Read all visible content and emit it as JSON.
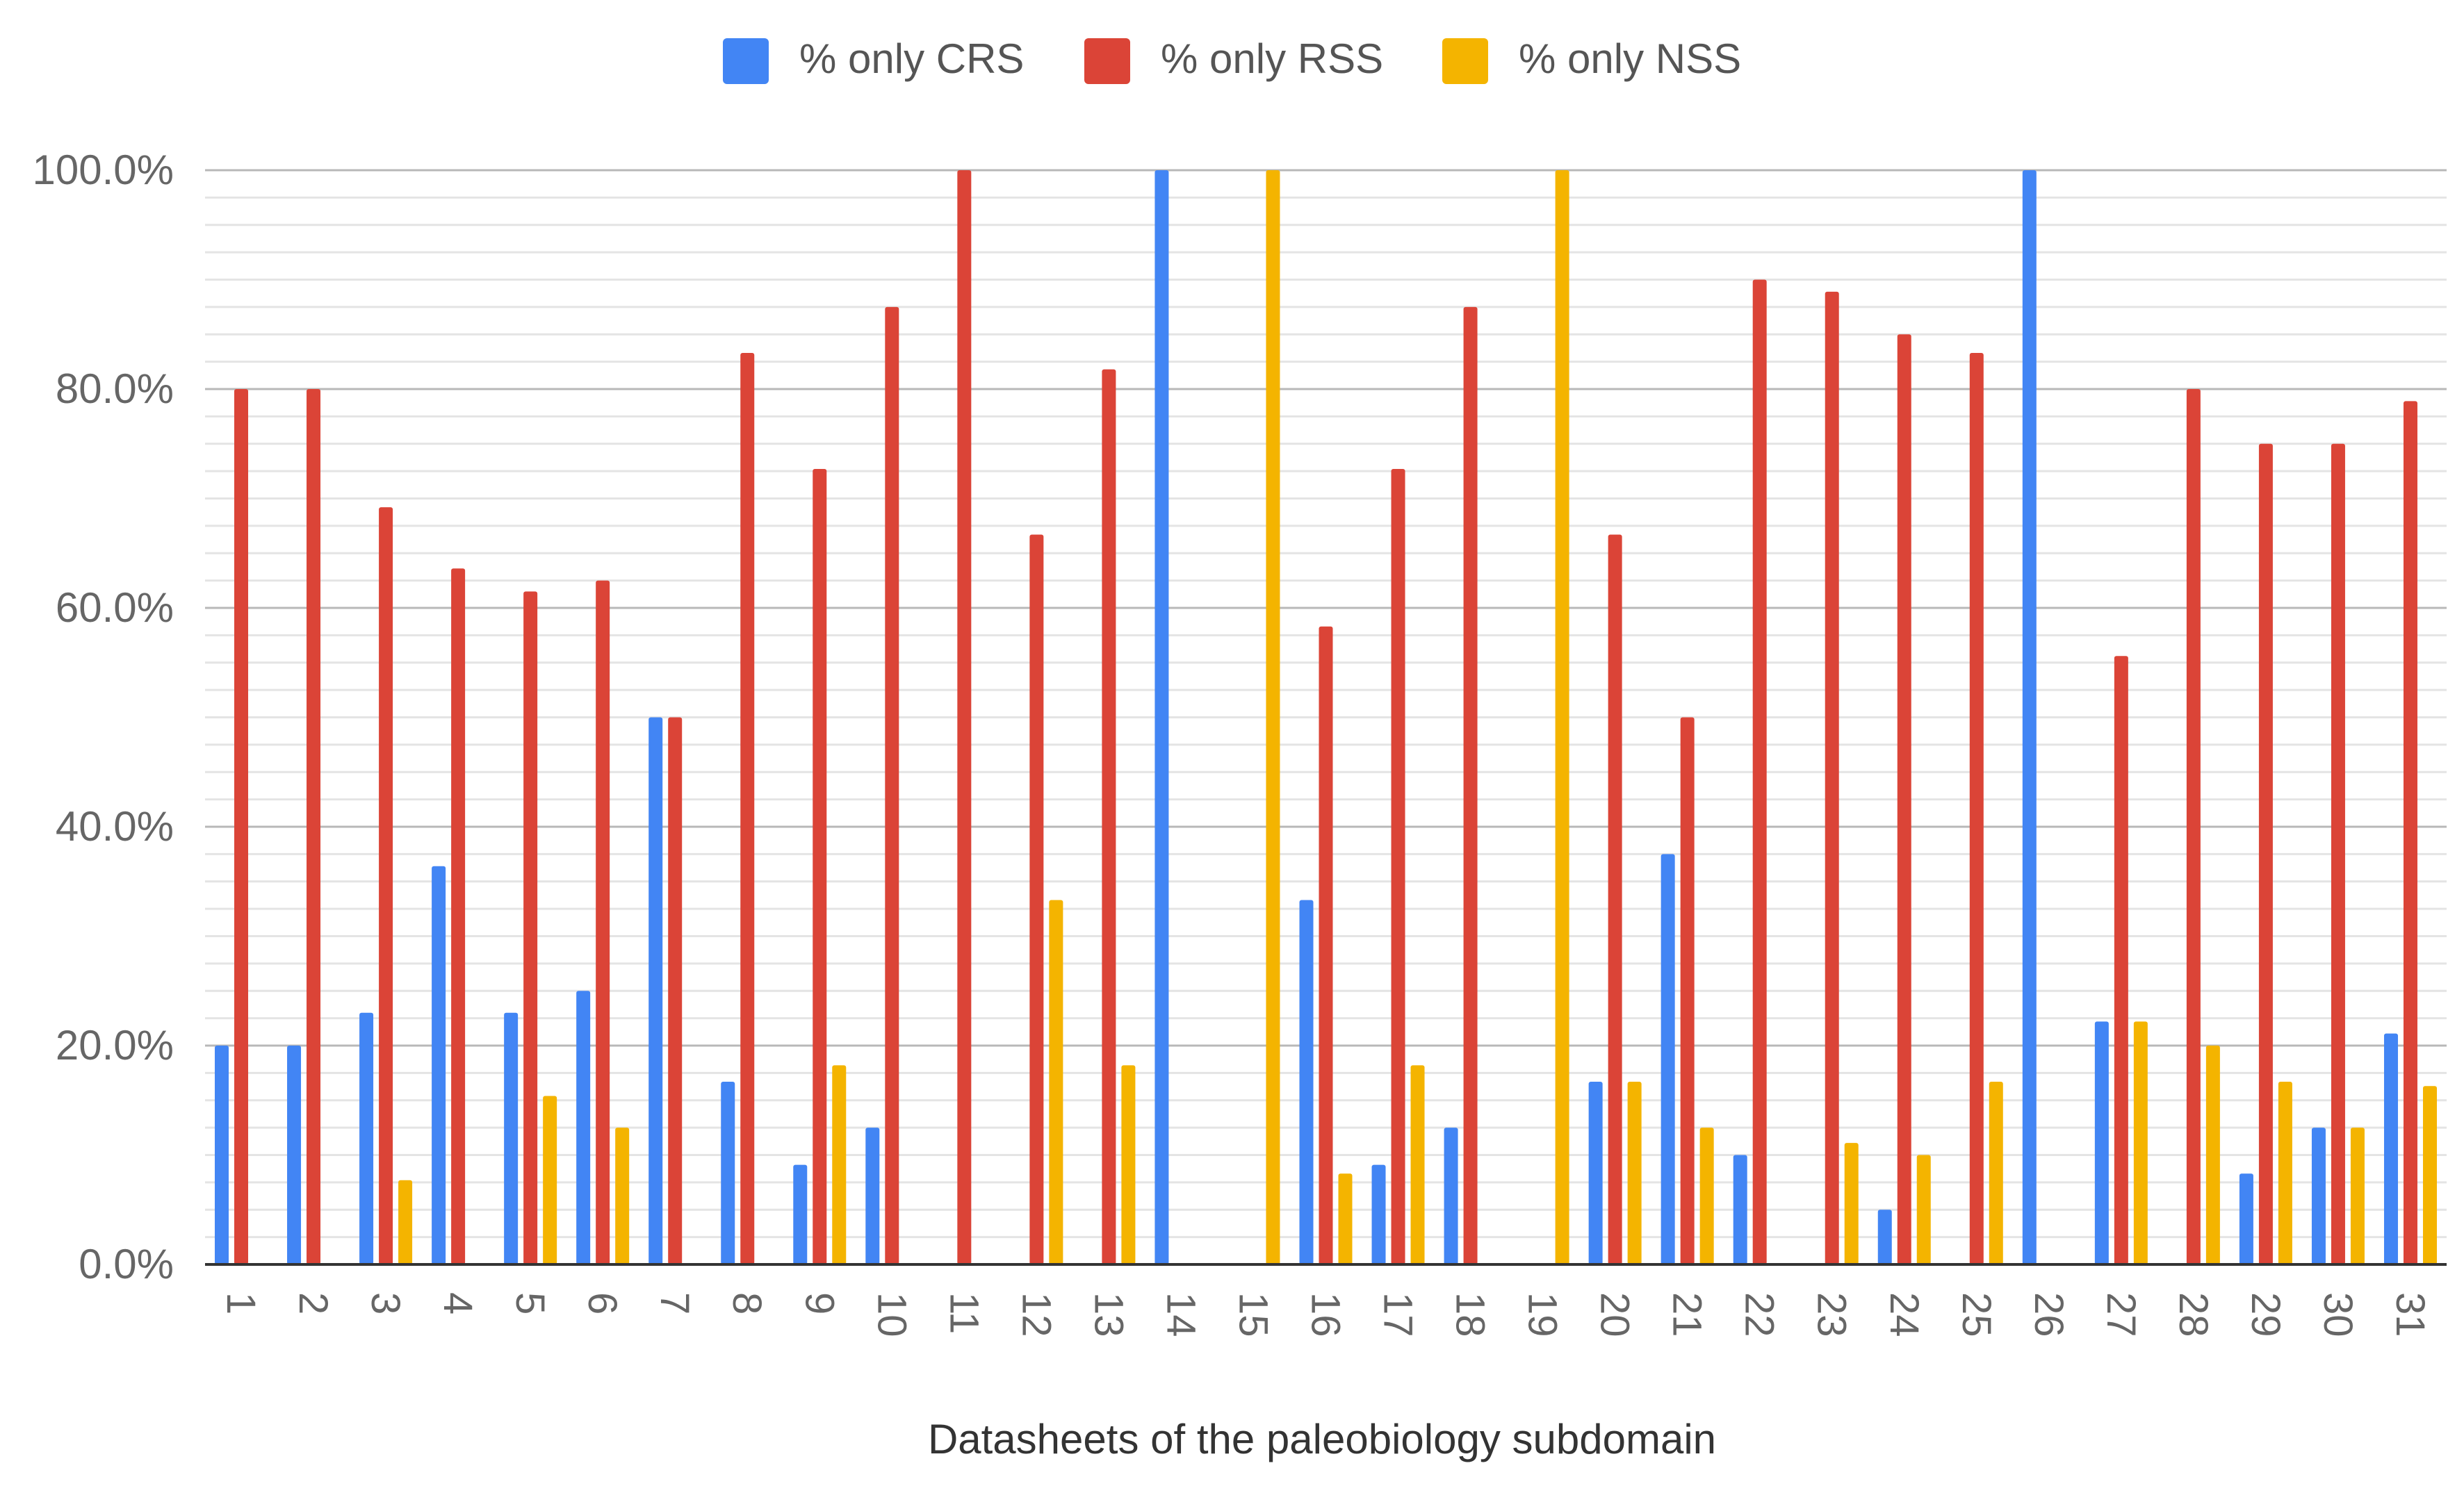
{
  "chart_data": {
    "type": "bar",
    "title": "",
    "xlabel": "Datasheets of the paleobiology subdomain",
    "ylabel": "",
    "ylim": [
      0,
      100
    ],
    "y_tick_values": [
      0,
      20,
      40,
      60,
      80,
      100
    ],
    "y_tick_labels": [
      "0.0%",
      "20.0%",
      "40.0%",
      "60.0%",
      "80.0%",
      "100.0%"
    ],
    "minor_gridline_step": 2.5,
    "legend_position": "top-center",
    "categories": [
      "1",
      "2",
      "3",
      "4",
      "5",
      "6",
      "7",
      "8",
      "9",
      "10",
      "11",
      "12",
      "13",
      "14",
      "15",
      "16",
      "17",
      "18",
      "19",
      "20",
      "21",
      "22",
      "23",
      "24",
      "25",
      "26",
      "27",
      "28",
      "29",
      "30",
      "31"
    ],
    "series": [
      {
        "name": "% only CRS",
        "color": "#4285f4",
        "values": [
          20,
          20,
          23,
          36.4,
          23,
          25,
          50,
          16.7,
          9.1,
          12.5,
          0,
          0,
          0,
          100,
          0,
          33.3,
          9.1,
          12.5,
          0,
          16.7,
          37.5,
          10,
          0,
          5,
          0,
          100,
          22.2,
          0,
          8.3,
          12.5,
          21.1
        ]
      },
      {
        "name": "% only RSS",
        "color": "#db4437",
        "values": [
          80,
          80,
          69.2,
          63.6,
          61.5,
          62.5,
          50,
          83.3,
          72.7,
          87.5,
          100,
          66.7,
          81.8,
          0,
          0,
          58.3,
          72.7,
          87.5,
          0,
          66.7,
          50,
          90,
          88.9,
          85,
          83.3,
          0,
          55.6,
          80,
          75,
          75,
          78.9
        ]
      },
      {
        "name": "% only NSS",
        "color": "#f4b400",
        "values": [
          0,
          0,
          7.7,
          0,
          15.4,
          12.5,
          0,
          0,
          18.2,
          0,
          0,
          33.3,
          18.2,
          0,
          100,
          8.3,
          18.2,
          0,
          100,
          16.7,
          12.5,
          0,
          11.1,
          10,
          16.7,
          0,
          22.2,
          20,
          16.7,
          12.5,
          16.3
        ]
      }
    ]
  }
}
